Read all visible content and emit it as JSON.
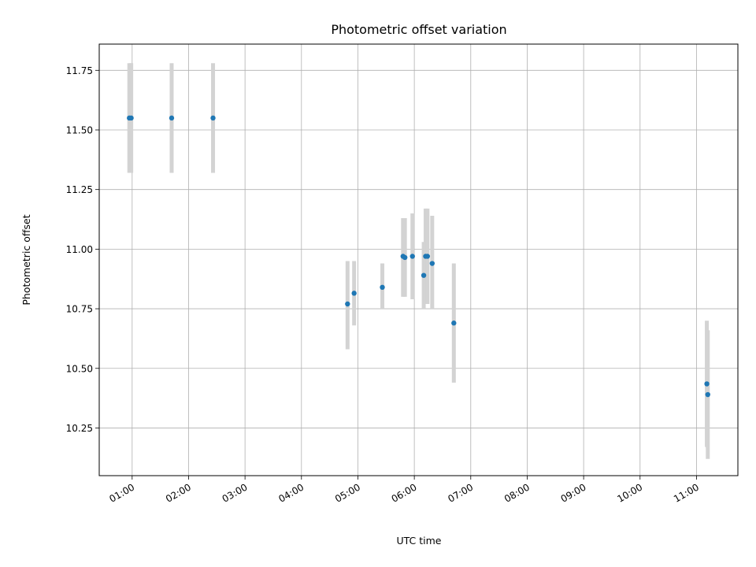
{
  "chart_data": {
    "type": "scatter",
    "title": "Photometric offset variation",
    "xlabel": "UTC time",
    "ylabel": "Photometric offset",
    "xlim": [
      "00:25",
      "11:44"
    ],
    "ylim": [
      10.05,
      11.86
    ],
    "x_ticks": [
      "01:00",
      "02:00",
      "03:00",
      "04:00",
      "05:00",
      "06:00",
      "07:00",
      "08:00",
      "09:00",
      "10:00",
      "11:00"
    ],
    "y_ticks": [
      "10.25",
      "10.50",
      "10.75",
      "11.00",
      "11.25",
      "11.50",
      "11.75"
    ],
    "grid": true,
    "colors": {
      "points": "#1f77b4",
      "error_bars": "#d3d3d3",
      "grid": "#b0b0b0"
    },
    "points": [
      {
        "x": "00:57",
        "y": 11.55,
        "yerr_low": 11.32,
        "yerr_high": 11.78
      },
      {
        "x": "00:59",
        "y": 11.55,
        "yerr_low": 11.32,
        "yerr_high": 11.78
      },
      {
        "x": "01:42",
        "y": 11.55,
        "yerr_low": 11.32,
        "yerr_high": 11.78
      },
      {
        "x": "02:26",
        "y": 11.55,
        "yerr_low": 11.32,
        "yerr_high": 11.78
      },
      {
        "x": "04:49",
        "y": 10.77,
        "yerr_low": 10.58,
        "yerr_high": 10.95
      },
      {
        "x": "04:56",
        "y": 10.815,
        "yerr_low": 10.68,
        "yerr_high": 10.95
      },
      {
        "x": "05:26",
        "y": 10.84,
        "yerr_low": 10.75,
        "yerr_high": 10.94
      },
      {
        "x": "05:48",
        "y": 10.97,
        "yerr_low": 10.8,
        "yerr_high": 11.13
      },
      {
        "x": "05:50",
        "y": 10.965,
        "yerr_low": 10.8,
        "yerr_high": 11.13
      },
      {
        "x": "05:58",
        "y": 10.97,
        "yerr_low": 10.79,
        "yerr_high": 11.15
      },
      {
        "x": "06:10",
        "y": 10.89,
        "yerr_low": 10.75,
        "yerr_high": 11.03
      },
      {
        "x": "06:12",
        "y": 10.97,
        "yerr_low": 10.77,
        "yerr_high": 11.17
      },
      {
        "x": "06:14",
        "y": 10.97,
        "yerr_low": 10.77,
        "yerr_high": 11.17
      },
      {
        "x": "06:19",
        "y": 10.94,
        "yerr_low": 10.75,
        "yerr_high": 11.14
      },
      {
        "x": "06:42",
        "y": 10.69,
        "yerr_low": 10.44,
        "yerr_high": 10.94
      },
      {
        "x": "11:11",
        "y": 10.435,
        "yerr_low": 10.17,
        "yerr_high": 10.7
      },
      {
        "x": "11:12",
        "y": 10.39,
        "yerr_low": 10.12,
        "yerr_high": 10.66
      }
    ]
  }
}
